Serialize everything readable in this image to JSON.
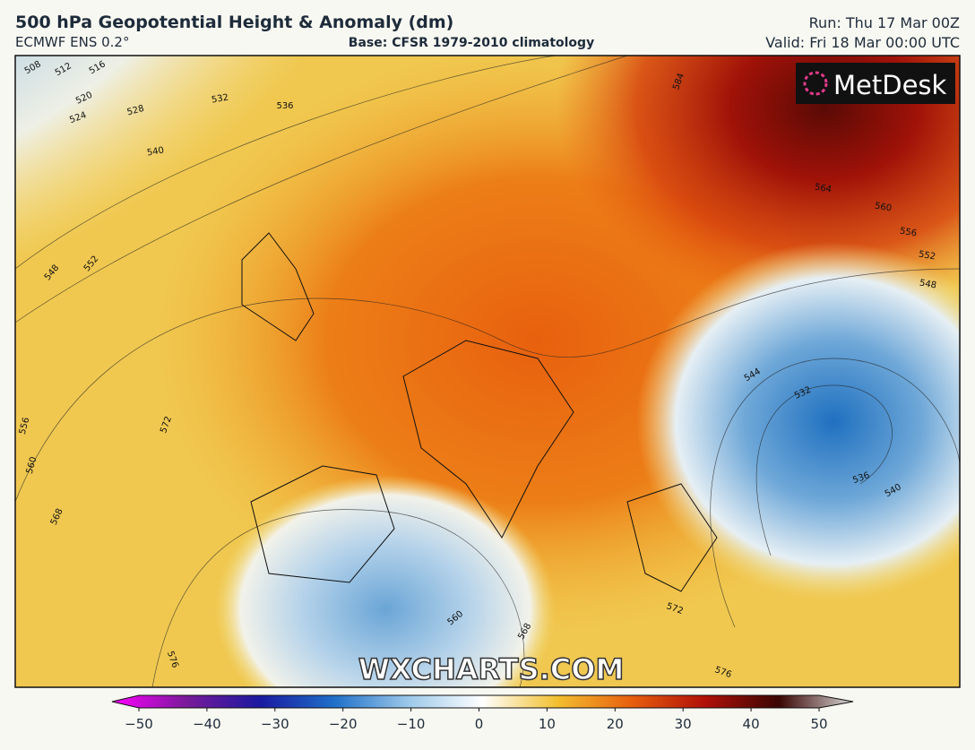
{
  "header": {
    "title": "500 hPa Geopotential Height & Anomaly (dm)",
    "model": "ECMWF ENS 0.2°",
    "base": "Base: CFSR 1979-2010 climatology",
    "run": "Run: Thu 17 Mar 00Z",
    "valid": "Valid: Fri 18 Mar 00:00 UTC"
  },
  "logo": "MetDesk",
  "watermark": "WXCHARTS.COM",
  "contour_labels": [
    508,
    512,
    516,
    520,
    524,
    528,
    532,
    536,
    540,
    548,
    552,
    556,
    560,
    568,
    572,
    576,
    564,
    560,
    556,
    552,
    548,
    544,
    532,
    536,
    540,
    560,
    568,
    572,
    576,
    584
  ],
  "colorbar": {
    "range": [
      -50,
      50
    ],
    "ticks": [
      {
        "value": -50,
        "label": "−50"
      },
      {
        "value": -40,
        "label": "−40"
      },
      {
        "value": -30,
        "label": "−30"
      },
      {
        "value": -20,
        "label": "−20"
      },
      {
        "value": -10,
        "label": "−10"
      },
      0,
      10,
      20,
      30,
      40,
      50
    ]
  }
}
